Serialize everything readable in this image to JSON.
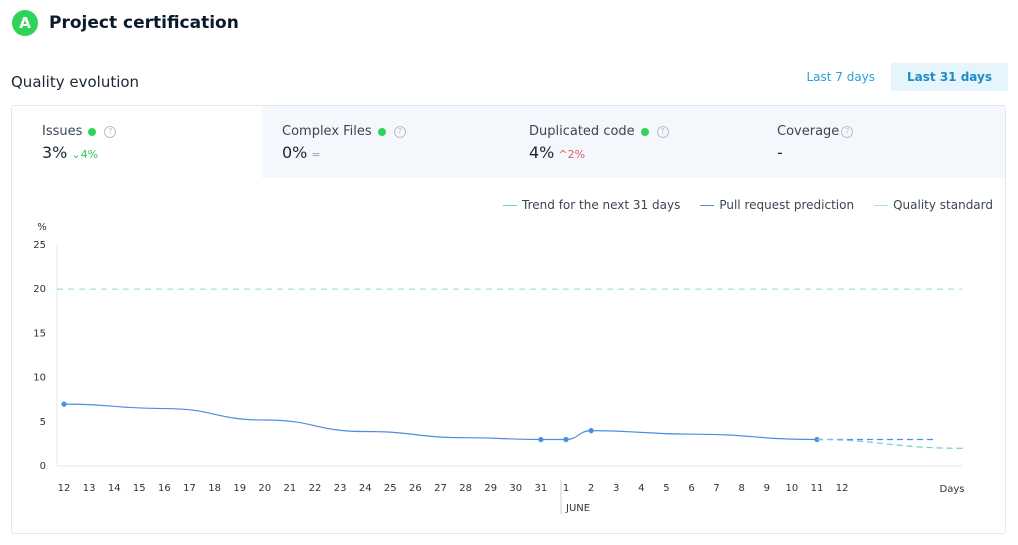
{
  "header": {
    "grade": "A",
    "title": "Project certification"
  },
  "section_title": "Quality evolution",
  "range_toggle": {
    "options": [
      "Last 7 days",
      "Last 31 days"
    ],
    "selected": "Last 31 days"
  },
  "metrics": [
    {
      "label": "Issues",
      "value": "3%",
      "delta": "4%",
      "delta_dir": "down",
      "status_dot": true,
      "selected": true
    },
    {
      "label": "Complex Files",
      "value": "0%",
      "delta": "=",
      "delta_dir": "flat",
      "status_dot": true,
      "selected": false
    },
    {
      "label": "Duplicated code",
      "value": "4%",
      "delta": "2%",
      "delta_dir": "up",
      "status_dot": true,
      "selected": false
    },
    {
      "label": "Coverage",
      "value": "-",
      "delta": "",
      "delta_dir": "",
      "status_dot": false,
      "selected": false
    }
  ],
  "help_icon": "question-circle-icon",
  "colors": {
    "accent": "#2a9fd6",
    "good": "#2fd35a",
    "bad": "#e05a66",
    "series": "#4a8fe0",
    "standard": "#a7e6d8"
  },
  "chart_data": {
    "type": "line",
    "ylabel": "%",
    "ylim": [
      0,
      25
    ],
    "yticks": [
      0,
      5,
      10,
      15,
      20,
      25
    ],
    "x_label": "Days",
    "month_marker": {
      "label": "JUNE",
      "at": "1"
    },
    "x_ticks": [
      "12",
      "13",
      "14",
      "15",
      "16",
      "17",
      "18",
      "19",
      "20",
      "21",
      "22",
      "23",
      "24",
      "25",
      "26",
      "27",
      "28",
      "29",
      "30",
      "31",
      "1",
      "2",
      "3",
      "4",
      "5",
      "6",
      "7",
      "8",
      "9",
      "10",
      "11",
      "12"
    ],
    "legend": [
      {
        "name": "Trend for the next 31 days",
        "color": "#6ccfd8"
      },
      {
        "name": "Pull request prediction",
        "color": "#4a8fe0"
      },
      {
        "name": "Quality standard",
        "color": "#a7e6d8"
      }
    ],
    "series": [
      {
        "name": "Issues",
        "points": [
          {
            "x": "12",
            "y": 7,
            "marker": true
          },
          {
            "x": "16",
            "y": 6.5
          },
          {
            "x": "20",
            "y": 5.2
          },
          {
            "x": "24",
            "y": 3.9
          },
          {
            "x": "28",
            "y": 3.2
          },
          {
            "x": "31",
            "y": 3,
            "marker": true
          },
          {
            "x": "1",
            "y": 3,
            "marker": true
          },
          {
            "x": "2",
            "y": 4,
            "marker": true
          },
          {
            "x": "6",
            "y": 3.6
          },
          {
            "x": "11",
            "y": 3,
            "marker": true
          }
        ]
      }
    ],
    "prediction": {
      "name": "Pull request prediction",
      "from": {
        "x": "11",
        "y": 3
      },
      "to": {
        "x": "16",
        "y": 3
      }
    },
    "trend": {
      "name": "Trend for the next 31 days",
      "from": {
        "x": "11",
        "y": 3
      },
      "to": {
        "x": "Days",
        "y": 2
      }
    },
    "quality_standard": 20
  }
}
